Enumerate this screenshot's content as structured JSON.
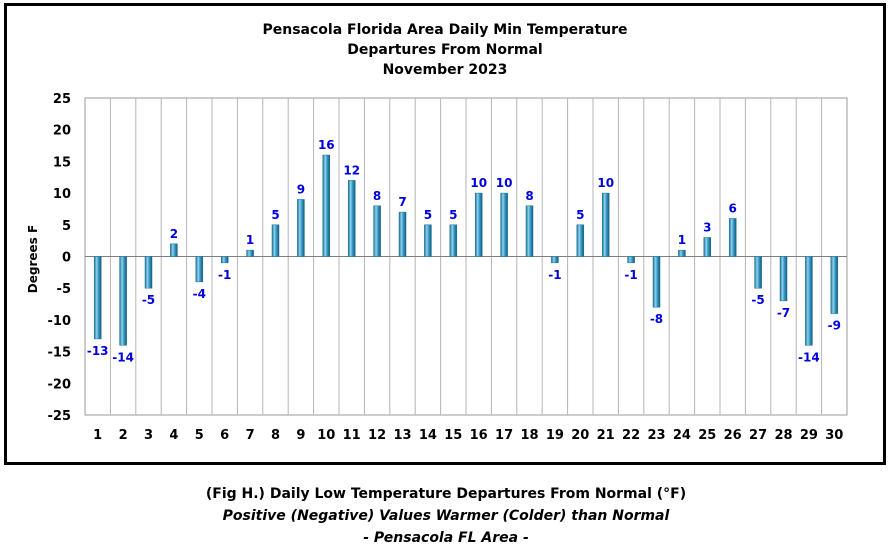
{
  "chart_data": {
    "type": "bar",
    "title": [
      "Pensacola Florida Area Daily Min Temperature",
      "Departures From Normal",
      "November 2023"
    ],
    "ylabel": "Degrees F",
    "xlabel": "",
    "ylim": [
      -25,
      25
    ],
    "yticks": [
      25,
      20,
      15,
      10,
      5,
      0,
      -5,
      -10,
      -15,
      -20,
      -25
    ],
    "grid": "vertical",
    "categories": [
      "1",
      "2",
      "3",
      "4",
      "5",
      "6",
      "7",
      "8",
      "9",
      "10",
      "11",
      "12",
      "13",
      "14",
      "15",
      "16",
      "17",
      "18",
      "19",
      "20",
      "21",
      "22",
      "23",
      "24",
      "25",
      "26",
      "27",
      "28",
      "29",
      "30"
    ],
    "values": [
      -13,
      -14,
      -5,
      2,
      -4,
      -1,
      1,
      5,
      9,
      16,
      12,
      8,
      7,
      5,
      5,
      10,
      10,
      8,
      -1,
      5,
      10,
      -1,
      -8,
      1,
      3,
      6,
      -5,
      -7,
      -14,
      -9
    ],
    "bar_color": "#3a9cc8",
    "label_color": "#0000dd"
  },
  "caption": {
    "line1": "(Fig H.) Daily Low Temperature Departures From Normal (°F)",
    "line2": "Positive (Negative) Values Warmer (Colder) than Normal",
    "line3": "- Pensacola FL Area -"
  }
}
